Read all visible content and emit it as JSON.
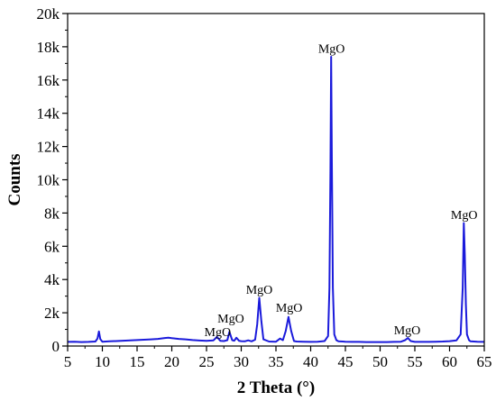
{
  "chart_data": {
    "type": "line",
    "title": "",
    "xlabel": "2 Theta (°)",
    "ylabel": "Counts",
    "xlim": [
      5,
      65
    ],
    "ylim": [
      0,
      20000
    ],
    "grid": false,
    "legend": "none",
    "x_ticks": [
      5,
      10,
      15,
      20,
      25,
      30,
      35,
      40,
      45,
      50,
      55,
      60,
      65
    ],
    "x_tick_labels": [
      "5",
      "10",
      "15",
      "20",
      "25",
      "30",
      "35",
      "40",
      "45",
      "50",
      "55",
      "60",
      "65"
    ],
    "y_ticks": [
      0,
      2000,
      4000,
      6000,
      8000,
      10000,
      12000,
      14000,
      16000,
      18000,
      20000
    ],
    "y_tick_labels": [
      "0",
      "2k",
      "4k",
      "6k",
      "8k",
      "10k",
      "12k",
      "14k",
      "16k",
      "18k",
      "20k"
    ],
    "line_color": "#1a1adb",
    "series": [
      {
        "x": [
          5,
          6,
          7,
          8,
          9,
          9.3,
          9.5,
          9.7,
          10,
          11,
          12,
          13,
          14,
          15,
          16,
          17,
          18,
          19,
          19.5,
          20,
          21,
          22,
          23,
          24,
          25,
          26,
          26.5,
          27,
          27.5,
          28,
          28.3,
          28.7,
          29,
          29.3,
          29.7,
          30,
          30.5,
          31,
          31.5,
          32,
          32.3,
          32.6,
          32.9,
          33.2,
          34,
          35,
          35.6,
          36,
          36.4,
          36.8,
          37.2,
          37.6,
          38,
          39,
          40,
          41,
          42,
          42.5,
          42.7,
          42.85,
          42.95,
          43.05,
          43.2,
          43.4,
          43.7,
          44,
          45,
          46,
          47,
          48,
          49,
          50,
          51,
          52,
          53,
          53.6,
          54,
          54.4,
          55,
          56,
          57,
          58,
          59,
          60,
          61,
          61.6,
          61.9,
          62.05,
          62.2,
          62.35,
          62.5,
          62.8,
          63,
          64,
          65
        ],
        "y": [
          250,
          260,
          240,
          250,
          270,
          450,
          880,
          420,
          260,
          280,
          300,
          320,
          340,
          360,
          380,
          400,
          430,
          480,
          500,
          470,
          430,
          400,
          360,
          330,
          310,
          340,
          550,
          310,
          300,
          350,
          850,
          350,
          320,
          500,
          310,
          290,
          280,
          340,
          280,
          380,
          1300,
          2900,
          1500,
          400,
          270,
          260,
          450,
          350,
          900,
          1750,
          900,
          300,
          270,
          260,
          250,
          260,
          300,
          600,
          3500,
          10500,
          17400,
          11000,
          3500,
          700,
          350,
          280,
          260,
          250,
          250,
          240,
          240,
          240,
          240,
          250,
          260,
          350,
          480,
          300,
          250,
          250,
          250,
          260,
          270,
          290,
          340,
          700,
          3500,
          7400,
          5500,
          2500,
          700,
          350,
          280,
          260,
          250
        ]
      }
    ],
    "annotations": [
      {
        "text": "MgO",
        "x": 26.6,
        "y": 600
      },
      {
        "text": "MgO",
        "x": 28.5,
        "y": 1400
      },
      {
        "text": "MgO",
        "x": 32.6,
        "y": 3150
      },
      {
        "text": "MgO",
        "x": 36.9,
        "y": 2050
      },
      {
        "text": "MgO",
        "x": 43.0,
        "y": 17650
      },
      {
        "text": "MgO",
        "x": 53.9,
        "y": 700
      },
      {
        "text": "MgO",
        "x": 62.1,
        "y": 7650
      }
    ]
  }
}
